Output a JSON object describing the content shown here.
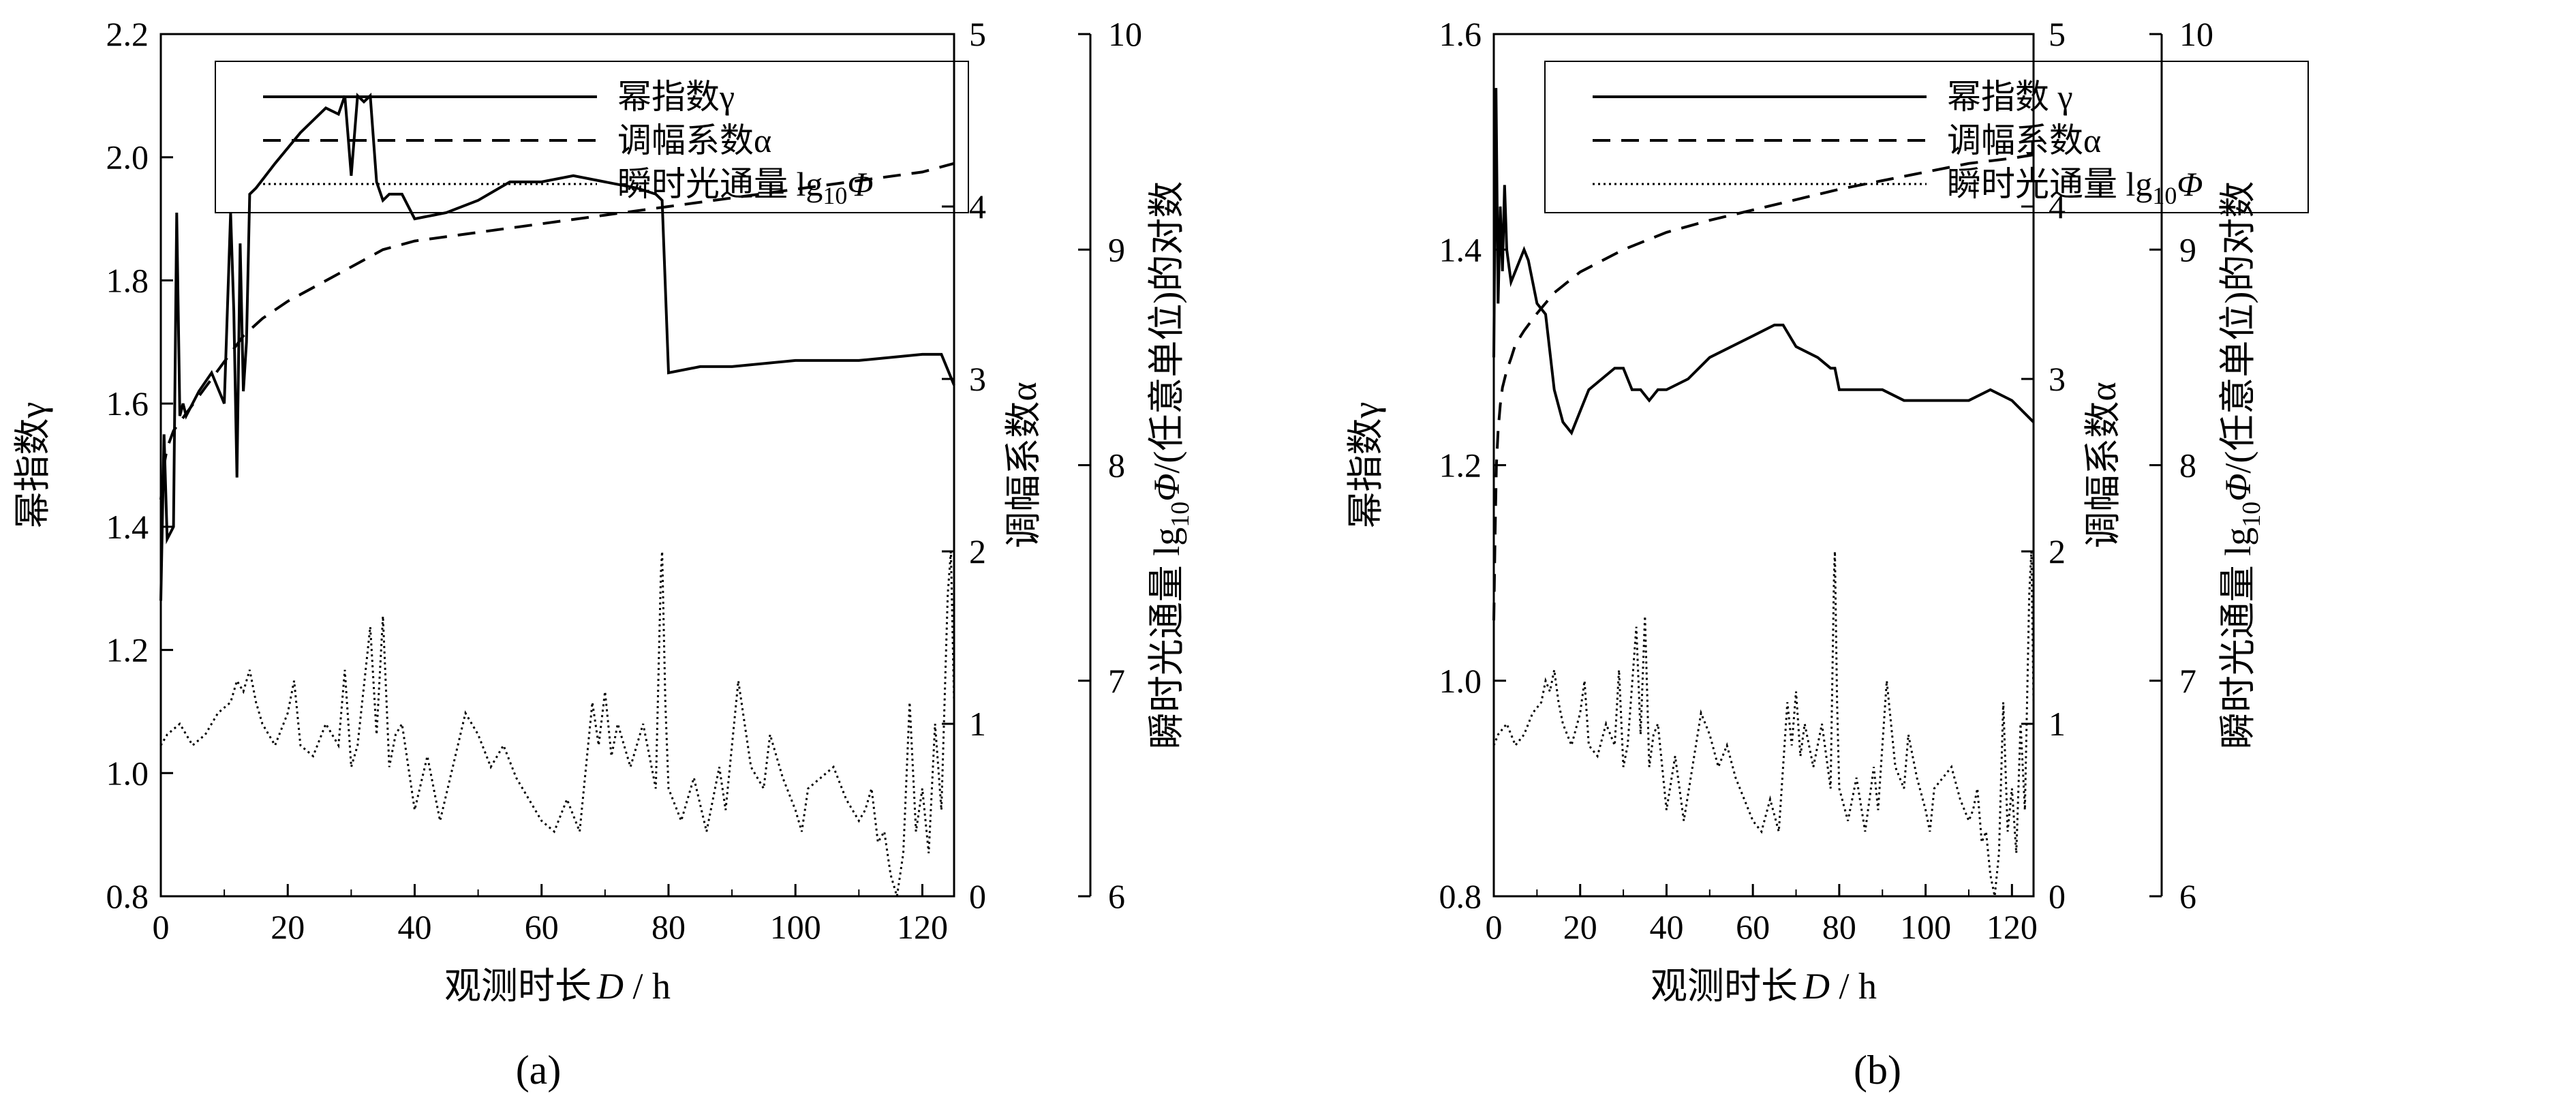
{
  "figure": {
    "panel_labels": [
      "(a)",
      "(b)"
    ]
  },
  "chart_data": [
    {
      "type": "line",
      "panel": "(a)",
      "xlabel_prefix": "观测时长",
      "xlabel_var": "D",
      "xlabel_unit": " / h",
      "xlim": [
        0,
        125
      ],
      "xticks": [
        0,
        20,
        40,
        60,
        80,
        100,
        120
      ],
      "ylabel_left": "幂指数γ",
      "ylim_left": [
        0.8,
        2.2
      ],
      "yticks_left": [
        "0.8",
        "1.0",
        "1.2",
        "1.4",
        "1.6",
        "1.8",
        "2.0",
        "2.2"
      ],
      "ylabel_alpha": "调幅系数α",
      "ylim_alpha": [
        0,
        5
      ],
      "yticks_alpha": [
        "0",
        "1",
        "2",
        "3",
        "4",
        "5"
      ],
      "ylabel_flux_prefix": "瞬时光通量 lg",
      "ylabel_flux_sub": "10",
      "ylabel_flux_var": "Φ",
      "ylabel_flux_suffix": "/(任意单位)的对数",
      "ylim_flux": [
        6,
        10
      ],
      "yticks_flux": [
        "6",
        "7",
        "8",
        "9",
        "10"
      ],
      "legend": [
        {
          "label": "幂指数γ",
          "style": "solid"
        },
        {
          "label": "调幅系数α",
          "style": "dashed"
        },
        {
          "label_prefix": "瞬时光通量 lg",
          "label_sub": "10",
          "label_var": "Φ",
          "style": "dotted"
        }
      ],
      "series": [
        {
          "name": "幂指数γ",
          "axis": "left",
          "x": [
            0,
            0.5,
            1,
            2,
            2.5,
            3,
            3.5,
            4,
            6,
            8,
            10,
            11,
            11.5,
            12,
            12.5,
            13,
            13.5,
            14,
            15,
            18,
            22,
            26,
            28,
            29,
            30,
            31,
            32,
            33,
            34,
            35,
            36,
            38,
            40,
            45,
            50,
            55,
            60,
            65,
            70,
            75,
            78,
            79,
            80,
            85,
            90,
            100,
            110,
            120,
            123,
            125
          ],
          "values": [
            1.28,
            1.55,
            1.38,
            1.4,
            1.91,
            1.58,
            1.6,
            1.58,
            1.62,
            1.65,
            1.6,
            1.91,
            1.75,
            1.48,
            1.86,
            1.62,
            1.7,
            1.94,
            1.95,
            1.99,
            2.04,
            2.08,
            2.07,
            2.1,
            1.97,
            2.1,
            2.09,
            2.1,
            1.96,
            1.93,
            1.94,
            1.94,
            1.9,
            1.91,
            1.93,
            1.96,
            1.96,
            1.97,
            1.96,
            1.95,
            1.94,
            1.93,
            1.65,
            1.66,
            1.66,
            1.67,
            1.67,
            1.68,
            1.68,
            1.63
          ]
        },
        {
          "name": "调幅系数α",
          "axis": "alpha",
          "x": [
            0,
            0.5,
            1,
            2,
            4,
            7,
            10,
            13,
            16,
            20,
            25,
            30,
            35,
            40,
            50,
            60,
            70,
            80,
            90,
            100,
            110,
            120,
            125
          ],
          "values": [
            2.3,
            2.5,
            2.6,
            2.7,
            2.8,
            2.95,
            3.1,
            3.25,
            3.35,
            3.45,
            3.55,
            3.65,
            3.75,
            3.8,
            3.85,
            3.9,
            3.95,
            4.0,
            4.05,
            4.1,
            4.15,
            4.2,
            4.25
          ]
        },
        {
          "name": "瞬时光通量",
          "axis": "flux",
          "x": [
            0,
            1,
            3,
            5,
            7,
            9,
            11,
            12,
            13,
            14,
            15,
            16,
            18,
            20,
            21,
            22,
            24,
            26,
            28,
            29,
            30,
            31,
            33,
            34,
            35,
            36,
            37,
            38,
            40,
            42,
            44,
            46,
            48,
            50,
            52,
            54,
            56,
            58,
            60,
            62,
            64,
            66,
            68,
            69,
            70,
            71,
            72,
            74,
            76,
            78,
            78.8,
            79,
            79.5,
            80,
            82,
            84,
            86,
            88,
            89,
            90,
            91,
            93,
            95,
            96,
            98,
            100,
            101,
            102,
            106,
            108,
            110,
            111,
            112,
            113,
            114,
            115,
            116,
            117,
            118,
            119,
            120,
            121,
            122,
            123,
            124,
            124.5,
            125
          ],
          "values": [
            6.7,
            6.75,
            6.8,
            6.7,
            6.75,
            6.85,
            6.9,
            7.0,
            6.95,
            7.05,
            6.9,
            6.8,
            6.7,
            6.85,
            7.0,
            6.7,
            6.65,
            6.8,
            6.7,
            7.05,
            6.6,
            6.7,
            7.25,
            6.75,
            7.3,
            6.6,
            6.75,
            6.8,
            6.4,
            6.65,
            6.35,
            6.6,
            6.85,
            6.75,
            6.6,
            6.7,
            6.55,
            6.45,
            6.35,
            6.3,
            6.45,
            6.3,
            6.9,
            6.7,
            6.95,
            6.65,
            6.8,
            6.6,
            6.8,
            6.5,
            7.5,
            7.6,
            6.9,
            6.5,
            6.35,
            6.55,
            6.3,
            6.6,
            6.4,
            6.7,
            7.0,
            6.6,
            6.5,
            6.75,
            6.55,
            6.4,
            6.3,
            6.5,
            6.6,
            6.45,
            6.35,
            6.4,
            6.5,
            6.25,
            6.3,
            6.1,
            6.0,
            6.2,
            6.9,
            6.3,
            6.5,
            6.2,
            6.8,
            6.4,
            7.4,
            7.6,
            6.9
          ]
        }
      ]
    },
    {
      "type": "line",
      "panel": "(b)",
      "xlabel_prefix": "观测时长",
      "xlabel_var": "D",
      "xlabel_unit": " / h",
      "xlim": [
        0,
        125
      ],
      "xticks": [
        0,
        20,
        40,
        60,
        80,
        100,
        120
      ],
      "ylabel_left": "幂指数γ",
      "ylim_left": [
        0.8,
        1.6
      ],
      "yticks_left": [
        "0.8",
        "1.0",
        "1.2",
        "1.4",
        "1.6"
      ],
      "ylabel_alpha": "调幅系数α",
      "ylim_alpha": [
        0,
        5
      ],
      "yticks_alpha": [
        "0",
        "1",
        "2",
        "3",
        "4",
        "5"
      ],
      "ylabel_flux_prefix": "瞬时光通量 lg",
      "ylabel_flux_sub": "10",
      "ylabel_flux_var": "Φ",
      "ylabel_flux_suffix": "/(任意单位)的对数",
      "ylim_flux": [
        6,
        10
      ],
      "yticks_flux": [
        "6",
        "7",
        "8",
        "9",
        "10"
      ],
      "legend": [
        {
          "label": "幂指数 γ",
          "style": "solid"
        },
        {
          "label": "调幅系数α",
          "style": "dashed"
        },
        {
          "label_prefix": "瞬时光通量 lg",
          "label_sub": "10",
          "label_var": "Φ",
          "style": "dotted"
        }
      ],
      "series": [
        {
          "name": "幂指数 γ",
          "axis": "left",
          "x": [
            0,
            0.5,
            1,
            1.5,
            2,
            2.5,
            3,
            4,
            5,
            6,
            7,
            8,
            10,
            12,
            14,
            16,
            18,
            20,
            22,
            25,
            28,
            30,
            32,
            34,
            36,
            38,
            40,
            45,
            50,
            55,
            60,
            65,
            67,
            70,
            75,
            78,
            79,
            80,
            85,
            90,
            95,
            100,
            105,
            110,
            115,
            120,
            125
          ],
          "values": [
            1.3,
            1.55,
            1.35,
            1.44,
            1.38,
            1.46,
            1.4,
            1.37,
            1.38,
            1.39,
            1.4,
            1.39,
            1.35,
            1.34,
            1.27,
            1.24,
            1.23,
            1.25,
            1.27,
            1.28,
            1.29,
            1.29,
            1.27,
            1.27,
            1.26,
            1.27,
            1.27,
            1.28,
            1.3,
            1.31,
            1.32,
            1.33,
            1.33,
            1.31,
            1.3,
            1.29,
            1.29,
            1.27,
            1.27,
            1.27,
            1.26,
            1.26,
            1.26,
            1.26,
            1.27,
            1.26,
            1.24
          ]
        },
        {
          "name": "调幅系数α",
          "axis": "alpha",
          "x": [
            0,
            0.3,
            0.6,
            1,
            1.5,
            2,
            3,
            4,
            5,
            7,
            10,
            14,
            20,
            30,
            40,
            50,
            60,
            70,
            80,
            90,
            100,
            110,
            120,
            125
          ],
          "values": [
            1.6,
            2.1,
            2.5,
            2.7,
            2.85,
            2.95,
            3.05,
            3.12,
            3.2,
            3.28,
            3.38,
            3.5,
            3.62,
            3.75,
            3.85,
            3.92,
            3.98,
            4.04,
            4.1,
            4.15,
            4.2,
            4.25,
            4.28,
            4.3
          ]
        },
        {
          "name": "瞬时光通量",
          "axis": "flux",
          "x": [
            0,
            1,
            3,
            5,
            7,
            9,
            11,
            12,
            13,
            14,
            15,
            16,
            18,
            20,
            21,
            22,
            24,
            26,
            28,
            29,
            30,
            31,
            33,
            34,
            35,
            36,
            37,
            38,
            40,
            42,
            44,
            46,
            48,
            50,
            52,
            54,
            56,
            58,
            60,
            62,
            64,
            66,
            68,
            69,
            70,
            71,
            72,
            74,
            76,
            78,
            78.8,
            79,
            79.5,
            80,
            82,
            84,
            86,
            88,
            89,
            90,
            91,
            93,
            95,
            96,
            98,
            100,
            101,
            102,
            106,
            108,
            110,
            111,
            112,
            113,
            114,
            115,
            116,
            117,
            118,
            119,
            120,
            121,
            122,
            123,
            124,
            124.5,
            125
          ],
          "values": [
            6.7,
            6.75,
            6.8,
            6.7,
            6.75,
            6.85,
            6.9,
            7.0,
            6.95,
            7.05,
            6.9,
            6.8,
            6.7,
            6.85,
            7.0,
            6.7,
            6.65,
            6.8,
            6.7,
            7.05,
            6.6,
            6.7,
            7.25,
            6.75,
            7.3,
            6.6,
            6.75,
            6.8,
            6.4,
            6.65,
            6.35,
            6.6,
            6.85,
            6.75,
            6.6,
            6.7,
            6.55,
            6.45,
            6.35,
            6.3,
            6.45,
            6.3,
            6.9,
            6.7,
            6.95,
            6.65,
            6.8,
            6.6,
            6.8,
            6.5,
            7.5,
            7.6,
            6.9,
            6.5,
            6.35,
            6.55,
            6.3,
            6.6,
            6.4,
            6.7,
            7.0,
            6.6,
            6.5,
            6.75,
            6.55,
            6.4,
            6.3,
            6.5,
            6.6,
            6.45,
            6.35,
            6.4,
            6.5,
            6.25,
            6.3,
            6.1,
            6.0,
            6.2,
            6.9,
            6.3,
            6.5,
            6.2,
            6.8,
            6.4,
            7.4,
            7.6,
            6.9
          ]
        }
      ]
    }
  ]
}
